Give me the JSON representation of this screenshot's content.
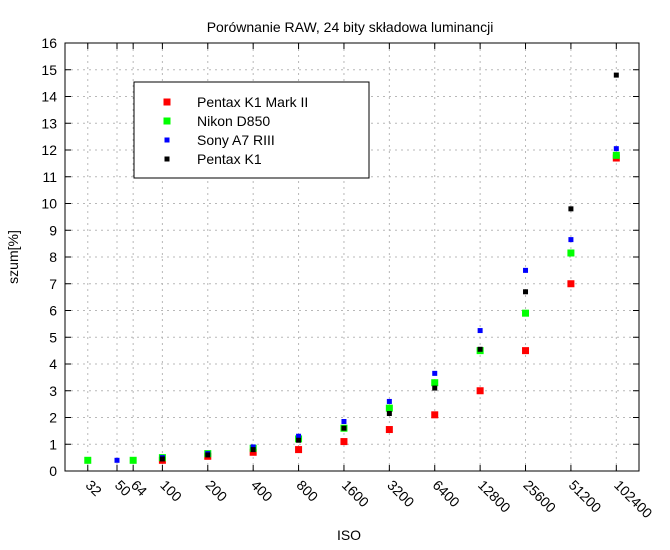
{
  "chart_data": {
    "type": "scatter",
    "title": "Porównanie RAW, 24 bity składowa luminancji",
    "xlabel": "ISO",
    "ylabel": "szum[%]",
    "x_scale": "log2",
    "xlim": [
      22.6,
      144815
    ],
    "ylim": [
      0,
      16
    ],
    "y_ticks": [
      0,
      1,
      2,
      3,
      4,
      5,
      6,
      7,
      8,
      9,
      10,
      11,
      12,
      13,
      14,
      15,
      16
    ],
    "x_ticks": [
      32,
      50,
      64,
      100,
      200,
      400,
      800,
      1600,
      3200,
      6400,
      12800,
      25600,
      51200,
      102400
    ],
    "grid": true,
    "legend_position": "top-left",
    "series": [
      {
        "name": "Pentax K1 Mark II",
        "color": "#ff0000",
        "marker_size": "large",
        "points": [
          [
            100,
            0.4
          ],
          [
            200,
            0.55
          ],
          [
            400,
            0.7
          ],
          [
            800,
            0.8
          ],
          [
            1600,
            1.1
          ],
          [
            3200,
            1.55
          ],
          [
            6400,
            2.1
          ],
          [
            12800,
            3.0
          ],
          [
            25600,
            4.5
          ],
          [
            51200,
            7.0
          ],
          [
            102400,
            11.7
          ]
        ]
      },
      {
        "name": "Nikon D850",
        "color": "#00ff00",
        "marker_size": "large",
        "points": [
          [
            32,
            0.4
          ],
          [
            64,
            0.4
          ],
          [
            100,
            0.5
          ],
          [
            200,
            0.65
          ],
          [
            400,
            0.85
          ],
          [
            800,
            1.2
          ],
          [
            1600,
            1.6
          ],
          [
            3200,
            2.35
          ],
          [
            6400,
            3.3
          ],
          [
            12800,
            4.5
          ],
          [
            25600,
            5.9
          ],
          [
            51200,
            8.15
          ],
          [
            102400,
            11.8
          ]
        ]
      },
      {
        "name": "Sony A7 RIII",
        "color": "#0000ff",
        "marker_size": "small",
        "points": [
          [
            50,
            0.4
          ],
          [
            100,
            0.5
          ],
          [
            200,
            0.65
          ],
          [
            400,
            0.9
          ],
          [
            800,
            1.3
          ],
          [
            1600,
            1.85
          ],
          [
            3200,
            2.6
          ],
          [
            6400,
            3.65
          ],
          [
            12800,
            5.25
          ],
          [
            25600,
            7.5
          ],
          [
            51200,
            8.65
          ],
          [
            102400,
            12.05
          ]
        ]
      },
      {
        "name": "Pentax K1",
        "color": "#000000",
        "marker_size": "small",
        "points": [
          [
            100,
            0.45
          ],
          [
            200,
            0.6
          ],
          [
            400,
            0.8
          ],
          [
            800,
            1.15
          ],
          [
            1600,
            1.6
          ],
          [
            3200,
            2.15
          ],
          [
            6400,
            3.1
          ],
          [
            12800,
            4.55
          ],
          [
            25600,
            6.7
          ],
          [
            51200,
            9.8
          ],
          [
            102400,
            14.8
          ]
        ]
      }
    ]
  }
}
